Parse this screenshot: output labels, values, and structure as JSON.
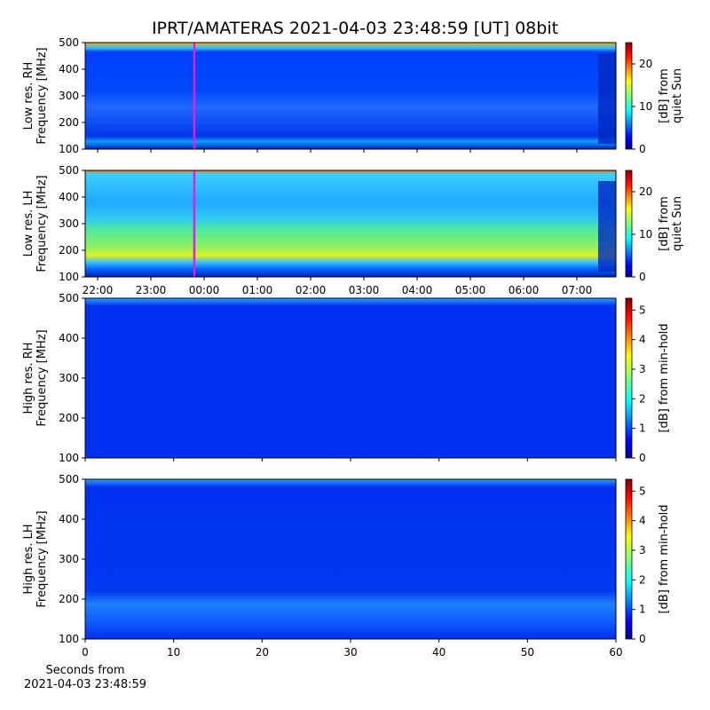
{
  "title": "IPRT/AMATERAS 2021-04-03 23:48:59 [UT]   08bit",
  "chart_data": [
    {
      "type": "heatmap",
      "ylabel": [
        "Low res. RH",
        "Frequency [MHz]"
      ],
      "ylim": [
        100,
        500
      ],
      "yticks": [
        100,
        200,
        300,
        400,
        500
      ],
      "xlim": [
        21.767,
        31.733
      ],
      "xticks": [
        22,
        23,
        24,
        25,
        26,
        27,
        28,
        29,
        30,
        31
      ],
      "marker_x": 23.816,
      "marker_color": "#e020e0",
      "colorbar": {
        "label": [
          "[dB] from",
          "quiet Sun"
        ],
        "lim": [
          0,
          25
        ],
        "ticks": [
          0,
          10,
          20
        ]
      }
    },
    {
      "type": "heatmap",
      "ylabel": [
        "Low res. LH",
        "Frequency [MHz]"
      ],
      "ylim": [
        100,
        500
      ],
      "yticks": [
        100,
        200,
        300,
        400,
        500
      ],
      "xlim": [
        21.767,
        31.733
      ],
      "xticks": [
        {
          "value": 22,
          "label": "22:00"
        },
        {
          "value": 23,
          "label": "23:00"
        },
        {
          "value": 24,
          "label": "00:00"
        },
        {
          "value": 25,
          "label": "01:00"
        },
        {
          "value": 26,
          "label": "02:00"
        },
        {
          "value": 27,
          "label": "03:00"
        },
        {
          "value": 28,
          "label": "04:00"
        },
        {
          "value": 29,
          "label": "05:00"
        },
        {
          "value": 30,
          "label": "06:00"
        },
        {
          "value": 31,
          "label": "07:00"
        }
      ],
      "marker_x": 23.816,
      "marker_color": "#e020e0",
      "colorbar": {
        "label": [
          "[dB] from",
          "quiet Sun"
        ],
        "lim": [
          0,
          25
        ],
        "ticks": [
          0,
          10,
          20
        ]
      }
    },
    {
      "type": "heatmap",
      "ylabel": [
        "High res. RH",
        "Frequency [MHz]"
      ],
      "ylim": [
        100,
        500
      ],
      "yticks": [
        100,
        200,
        300,
        400,
        500
      ],
      "xlim": [
        0,
        60
      ],
      "xticks": [
        0,
        10,
        20,
        30,
        40,
        50,
        60
      ],
      "colorbar": {
        "label": [
          "[dB] from min-hold"
        ],
        "lim": [
          0,
          5.4
        ],
        "ticks": [
          0,
          1,
          2,
          3,
          4,
          5
        ]
      }
    },
    {
      "type": "heatmap",
      "ylabel": [
        "High res. LH",
        "Frequency [MHz]"
      ],
      "ylim": [
        100,
        500
      ],
      "yticks": [
        100,
        200,
        300,
        400,
        500
      ],
      "xlim": [
        0,
        60
      ],
      "xticks": [
        0,
        10,
        20,
        30,
        40,
        50,
        60
      ],
      "xlabel": [
        "Seconds from",
        "2021-04-03 23:48:59"
      ],
      "colorbar": {
        "label": [
          "[dB] from min-hold"
        ],
        "lim": [
          0,
          5.4
        ],
        "ticks": [
          0,
          1,
          2,
          3,
          4,
          5
        ]
      }
    }
  ]
}
